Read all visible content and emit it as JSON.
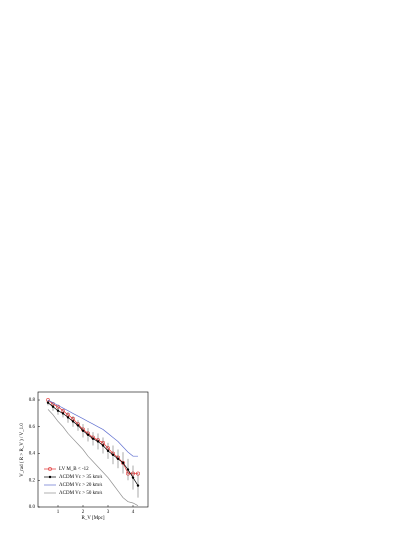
{
  "chart_data": {
    "type": "line",
    "x_label": "R_V [Mpc]",
    "y_label": "V_rad ( R > R_V ) / V_1.0",
    "x": [
      0.6,
      0.8,
      1.0,
      1.2,
      1.4,
      1.6,
      1.8,
      2.0,
      2.2,
      2.4,
      2.6,
      2.8,
      3.0,
      3.2,
      3.4,
      3.6,
      3.8,
      4.0,
      4.2
    ],
    "series": [
      {
        "name": "LV M_B < -12",
        "color": "#e03030",
        "marker": "circle",
        "values": [
          0.8,
          0.77,
          0.75,
          0.72,
          0.69,
          0.66,
          0.62,
          0.58,
          0.55,
          0.52,
          0.5,
          0.48,
          0.44,
          0.4,
          0.37,
          0.33,
          0.25,
          0.25,
          0.25
        ]
      },
      {
        "name": "ΛCDM Vc > 35 km/s",
        "color": "#000000",
        "marker": "dot",
        "values": [
          0.78,
          0.75,
          0.72,
          0.7,
          0.67,
          0.64,
          0.61,
          0.57,
          0.54,
          0.51,
          0.49,
          0.46,
          0.42,
          0.39,
          0.36,
          0.33,
          0.28,
          0.22,
          0.16
        ],
        "errors": [
          0.02,
          0.03,
          0.03,
          0.03,
          0.04,
          0.04,
          0.04,
          0.05,
          0.05,
          0.05,
          0.06,
          0.06,
          0.06,
          0.07,
          0.07,
          0.08,
          0.08,
          0.09,
          0.09
        ]
      },
      {
        "name": "ΛCDM Vc > 20 km/s",
        "color": "#6070d0",
        "marker": "none",
        "values": [
          0.8,
          0.78,
          0.76,
          0.74,
          0.72,
          0.7,
          0.68,
          0.66,
          0.64,
          0.62,
          0.6,
          0.58,
          0.55,
          0.52,
          0.49,
          0.45,
          0.41,
          0.38,
          0.38
        ]
      },
      {
        "name": "ΛCDM Vc > 50 km/s",
        "color": "#909090",
        "marker": "none",
        "values": [
          0.73,
          0.69,
          0.64,
          0.6,
          0.55,
          0.51,
          0.47,
          0.43,
          0.38,
          0.34,
          0.3,
          0.26,
          0.22,
          0.17,
          0.12,
          0.07,
          0.04,
          0.03,
          0.01
        ]
      }
    ],
    "xlim": [
      0.2,
      4.6
    ],
    "xticks": [
      1,
      2,
      3,
      4
    ],
    "ylim": [
      0,
      0.86
    ],
    "yticks": [
      {
        "value": 0,
        "label": "0.0"
      },
      {
        "value": 0.2,
        "label": "0.2"
      },
      {
        "value": 0.4,
        "label": "0.4"
      },
      {
        "value": 0.6,
        "label": "0.6"
      },
      {
        "value": 0.8,
        "label": "0.8"
      }
    ],
    "legend": "lower-left"
  }
}
